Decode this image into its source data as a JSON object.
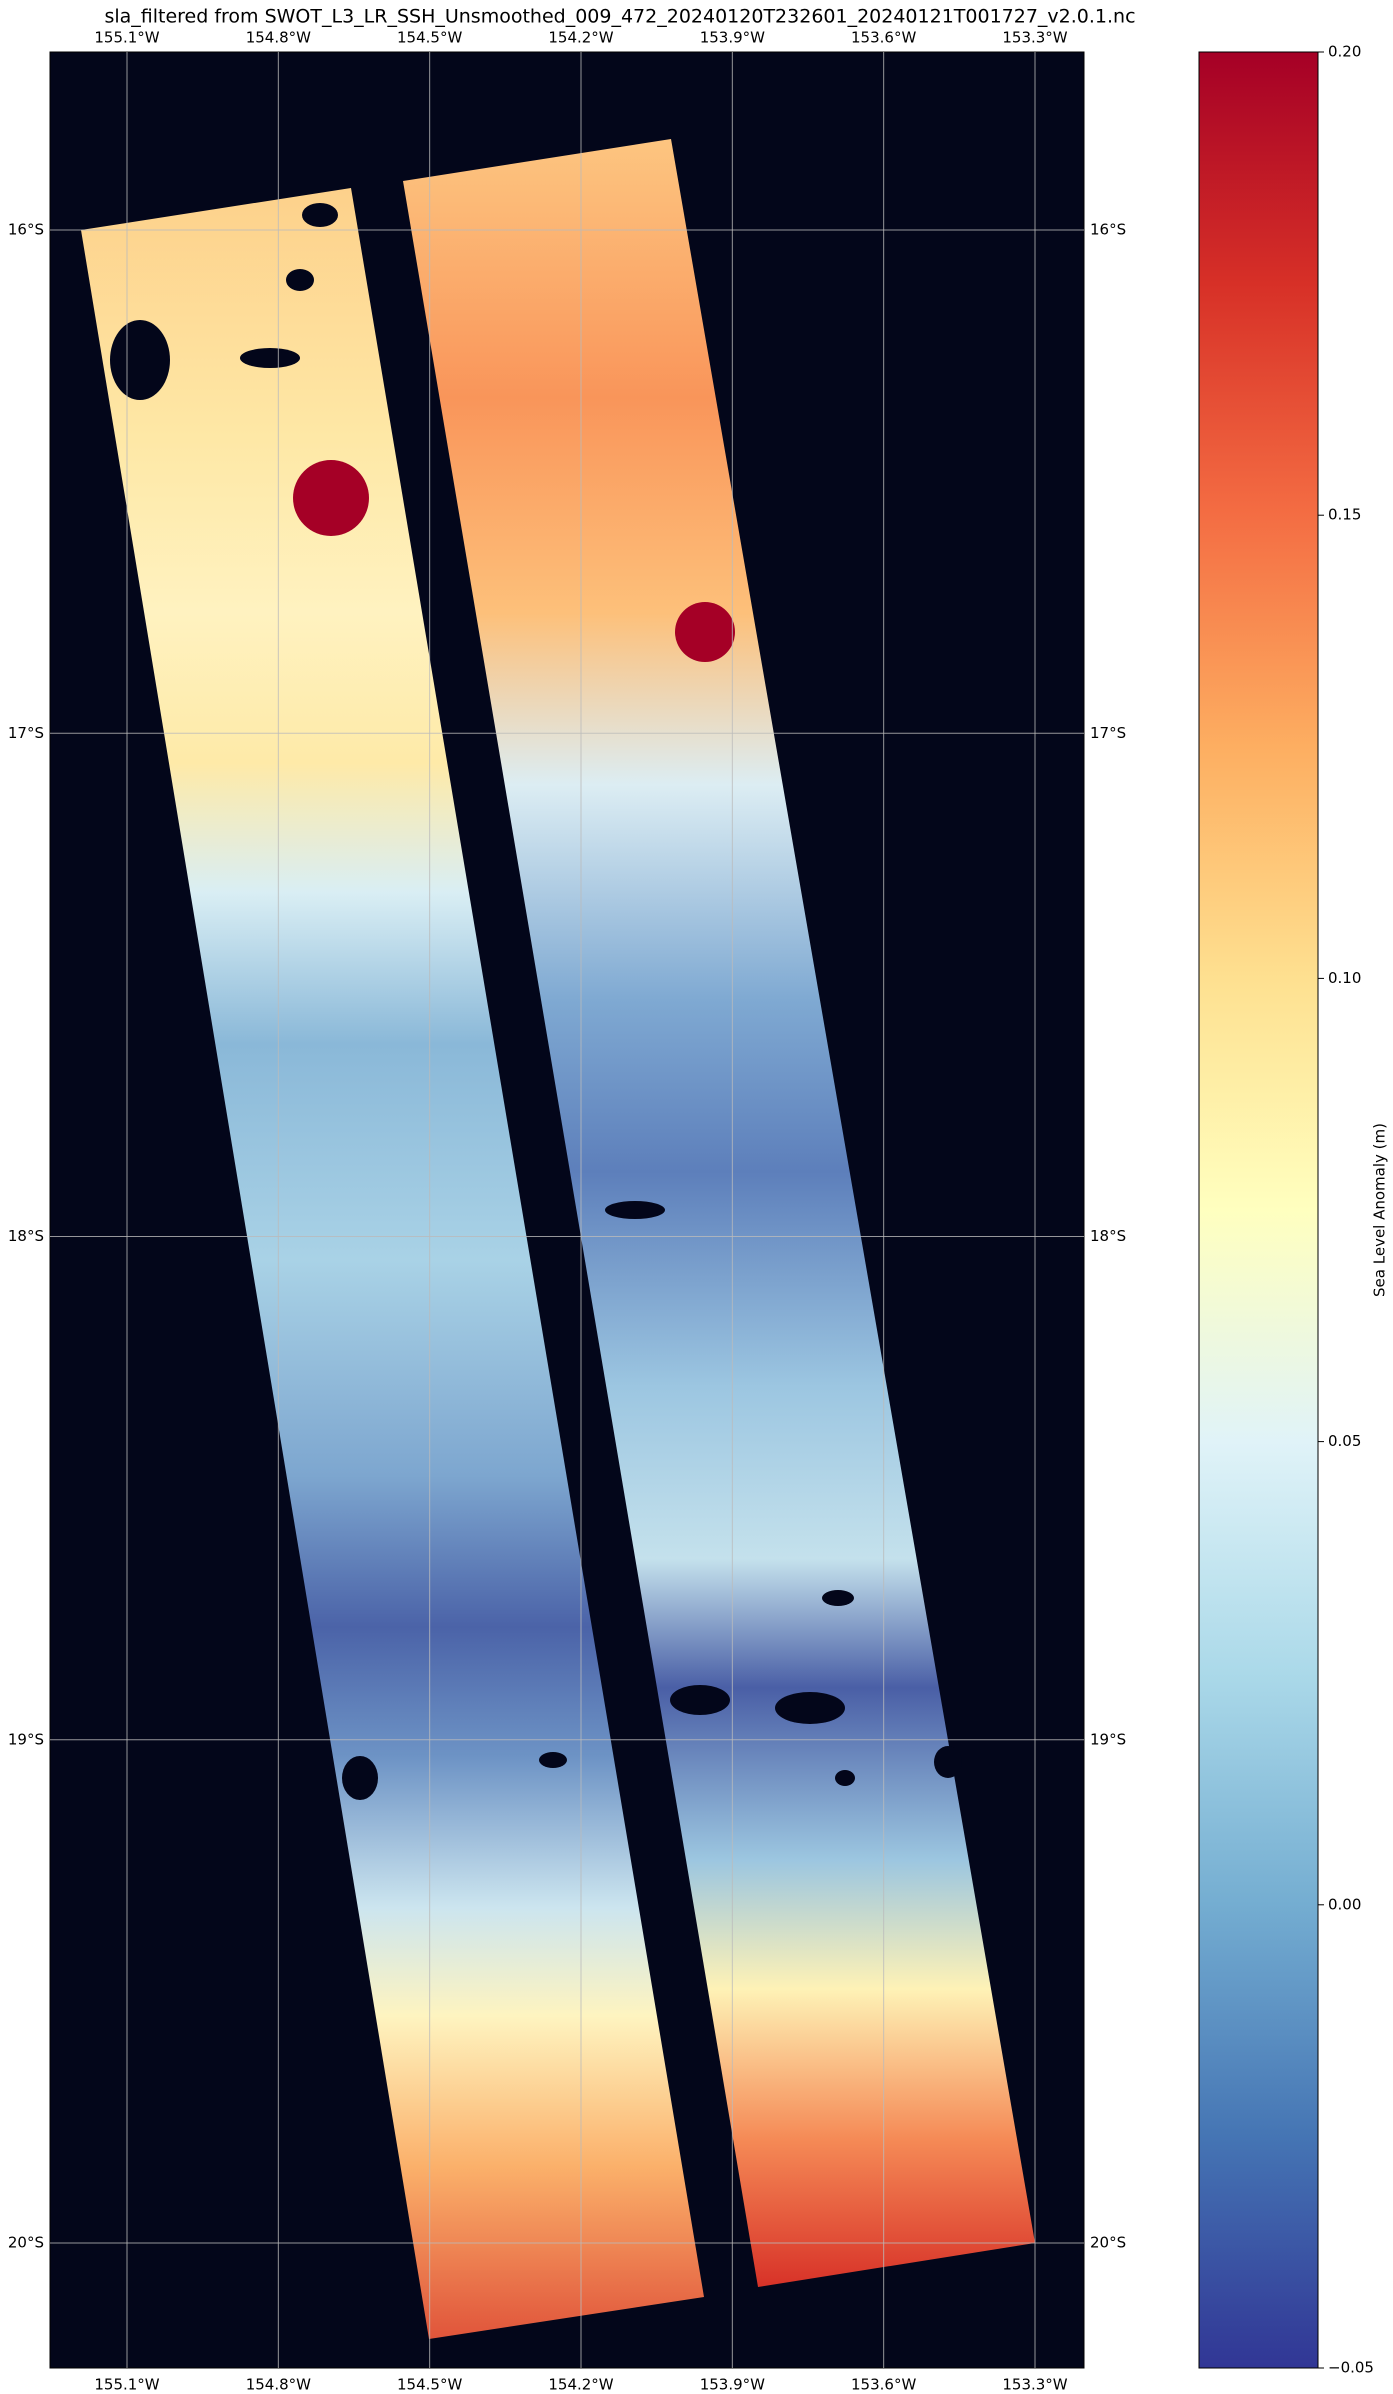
{
  "title": "sla_filtered from SWOT_L3_LR_SSH_Unsmoothed_009_472_20240120T232601_20240121T001727_v2.0.1.nc",
  "map": {
    "lon_ticks": [
      {
        "value": -155.1,
        "label": "155.1°W"
      },
      {
        "value": -154.8,
        "label": "154.8°W"
      },
      {
        "value": -154.5,
        "label": "154.5°W"
      },
      {
        "value": -154.2,
        "label": "154.2°W"
      },
      {
        "value": -153.9,
        "label": "153.9°W"
      },
      {
        "value": -153.6,
        "label": "153.6°W"
      },
      {
        "value": -153.3,
        "label": "153.3°W"
      }
    ],
    "lat_ticks": [
      {
        "value": -16,
        "label": "16°S"
      },
      {
        "value": -17,
        "label": "17°S"
      },
      {
        "value": -18,
        "label": "18°S"
      },
      {
        "value": -19,
        "label": "19°S"
      },
      {
        "value": -20,
        "label": "20°S"
      }
    ]
  },
  "colorbar": {
    "label": "Sea Level Anomaly (m)",
    "lim": [
      -0.05,
      0.2
    ],
    "ticks": [
      {
        "value": -0.05,
        "label": "−0.05"
      },
      {
        "value": 0,
        "label": "0.00"
      },
      {
        "value": 0.05,
        "label": "0.05"
      },
      {
        "value": 0.1,
        "label": "0.10"
      },
      {
        "value": 0.15,
        "label": "0.15"
      },
      {
        "value": 0.2,
        "label": "0.20"
      }
    ]
  }
}
